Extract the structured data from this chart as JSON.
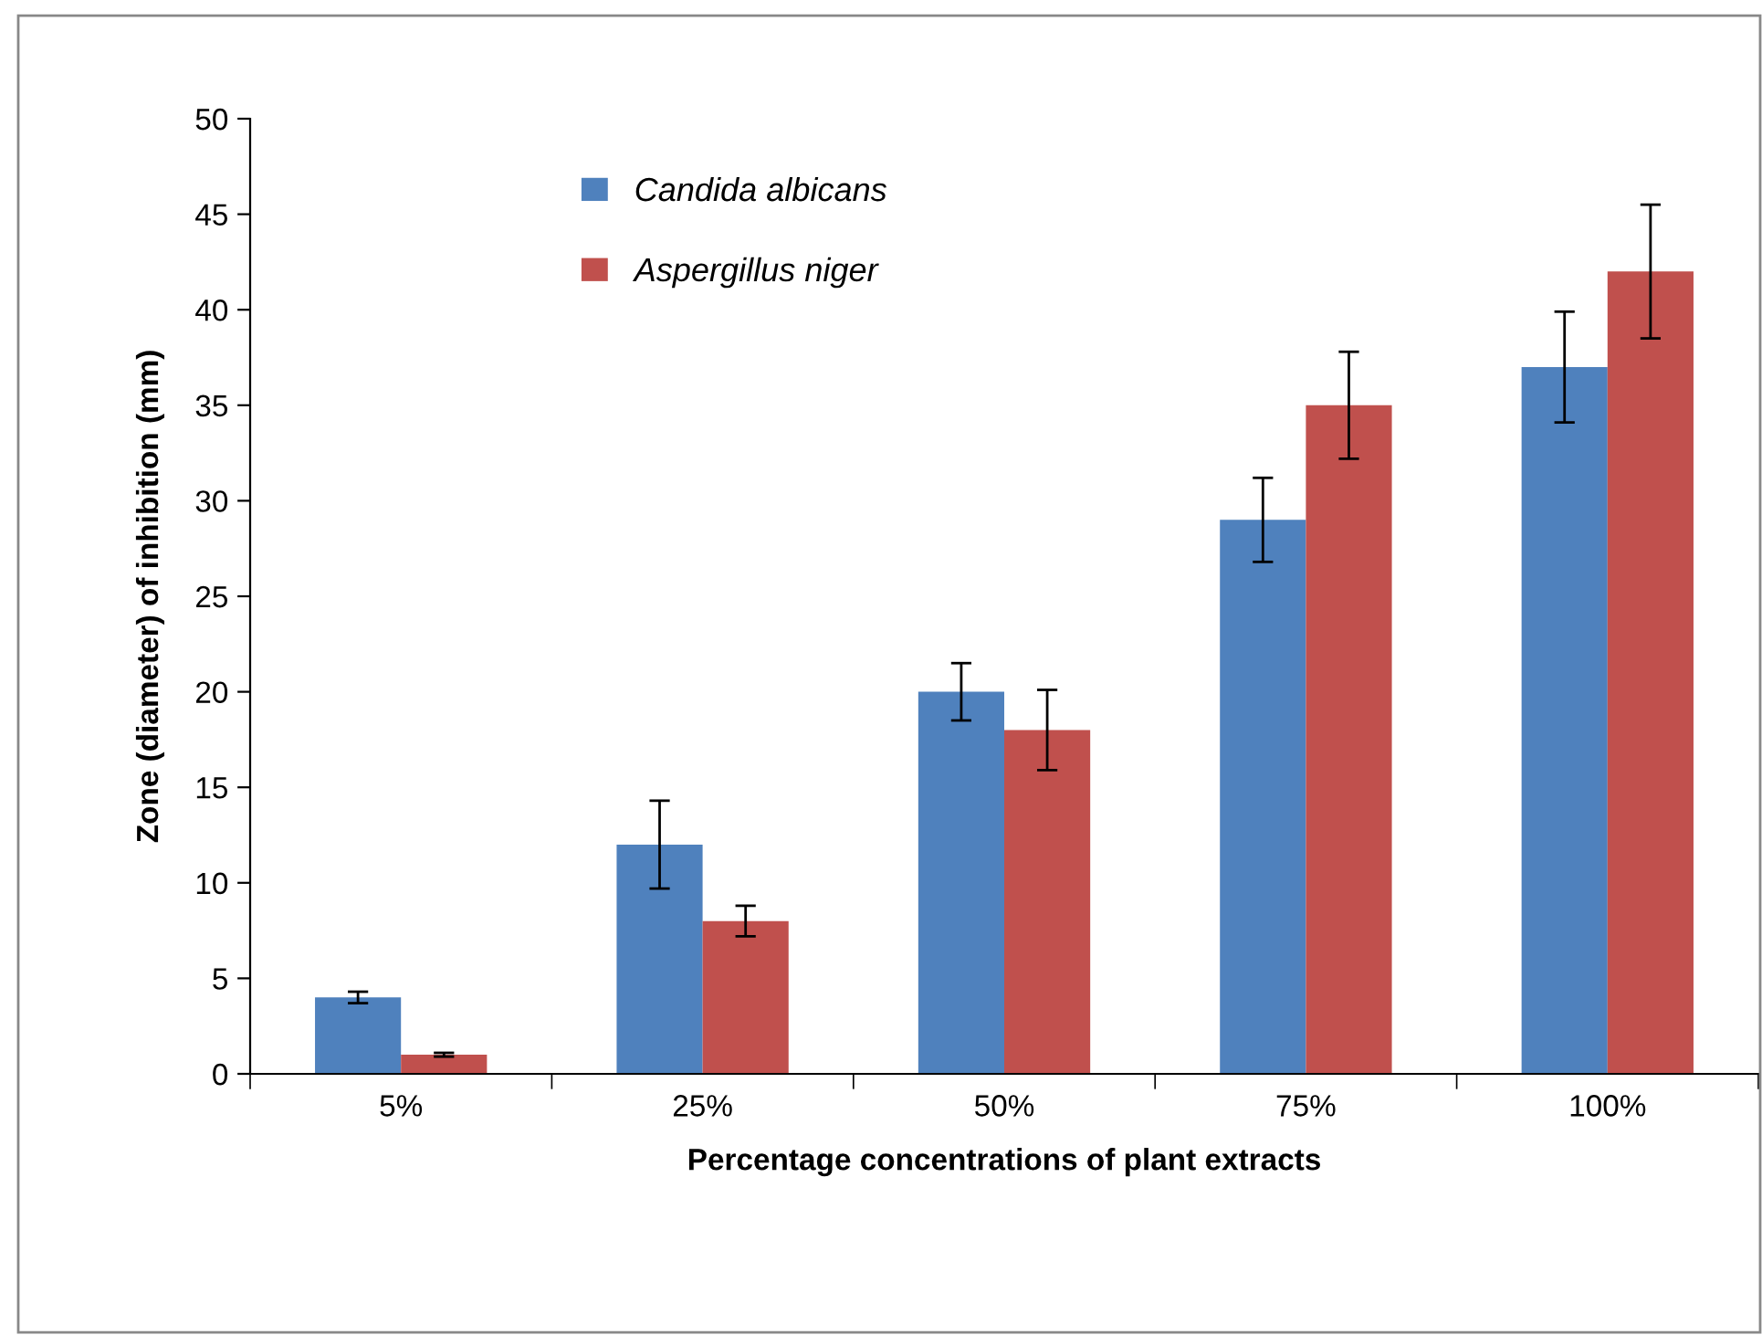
{
  "chart_data": {
    "type": "bar",
    "xlabel": "Percentage concentrations of plant extracts",
    "ylabel": "Zone (diameter) of inhibition (mm)",
    "categories": [
      "5%",
      "25%",
      "50%",
      "75%",
      "100%"
    ],
    "series": [
      {
        "name": "Candida albicans",
        "color": "#4f81bd",
        "values": [
          4,
          12,
          20,
          29,
          37
        ],
        "errors": [
          0.3,
          2.3,
          1.5,
          2.2,
          2.9
        ]
      },
      {
        "name": "Aspergillus niger",
        "color": "#c0504d",
        "values": [
          1,
          8,
          18,
          35,
          42
        ],
        "errors": [
          0.1,
          0.8,
          2.1,
          2.8,
          3.5
        ]
      }
    ],
    "ylim": [
      0,
      50
    ],
    "yticks": [
      0,
      5,
      10,
      15,
      20,
      25,
      30,
      35,
      40,
      45,
      50
    ],
    "grid": false,
    "legend": "top left"
  }
}
